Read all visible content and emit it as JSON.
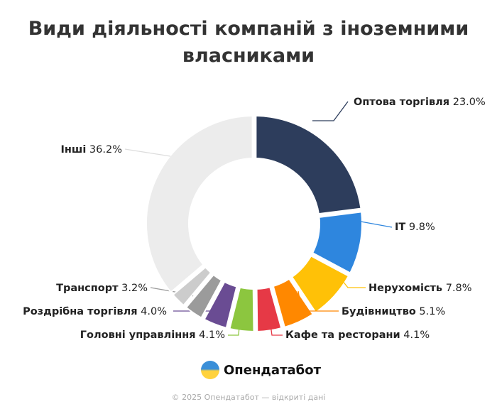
{
  "chart_data": {
    "type": "pie",
    "title": "Види діяльності компаній з іноземними власниками",
    "donut": true,
    "unit": "%",
    "slices": [
      {
        "label": "Оптова торгівля",
        "value": 23.0,
        "value_label": "23.0%",
        "color": "#2d3d5c"
      },
      {
        "label": "IT",
        "value": 9.8,
        "value_label": "9.8%",
        "color": "#2e86de"
      },
      {
        "label": "Нерухомість",
        "value": 7.8,
        "value_label": "7.8%",
        "color": "#ffc107"
      },
      {
        "label": "Будівництво",
        "value": 5.1,
        "value_label": "5.1%",
        "color": "#ff8800"
      },
      {
        "label": "Кафе та ресторани",
        "value": 4.1,
        "value_label": "4.1%",
        "color": "#e63946"
      },
      {
        "label": "Головні управління",
        "value": 4.1,
        "value_label": "4.1%",
        "color": "#8cc63f"
      },
      {
        "label": "Роздрібна торгівля",
        "value": 4.0,
        "value_label": "4.0%",
        "color": "#6a4c93"
      },
      {
        "label": "Транспорт",
        "value": 3.2,
        "value_label": "3.2%",
        "color": "#9b9b9b"
      },
      {
        "label": "",
        "value": 2.7,
        "value_label": "",
        "color": "#cccccc"
      },
      {
        "label": "Інші",
        "value": 36.2,
        "value_label": "36.2%",
        "color": "#ececec"
      }
    ]
  },
  "brand": {
    "name": "Опендатабот"
  },
  "footer": {
    "text": "© 2025 Опендатабот — відкриті дані"
  }
}
